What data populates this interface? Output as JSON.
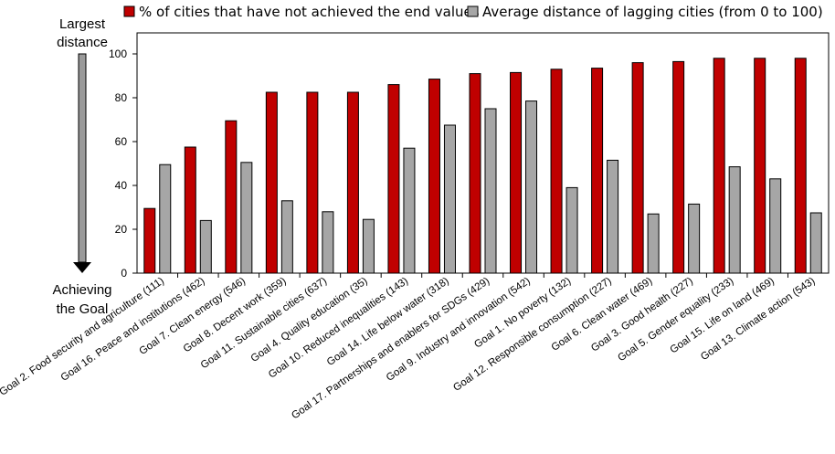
{
  "chart_data": {
    "type": "bar",
    "title": "",
    "xlabel": "",
    "ylabel": "",
    "ylim": [
      0,
      100
    ],
    "yticks": [
      0,
      20,
      40,
      60,
      80,
      100
    ],
    "grid": false,
    "legend_position": "top",
    "side_label_top": [
      "Largest",
      "distance"
    ],
    "side_label_bottom": [
      "Achieving",
      "the Goal"
    ],
    "categories": [
      "Goal 2. Food security and agriculture (111)",
      "Goal 16. Peace and institutions (462)",
      "Goal 7. Clean energy (546)",
      "Goal 8. Decent work (359)",
      "Goal 11. Sustainable cities (637)",
      "Goal 4. Quality education (35)",
      "Goal 10. Reduced inequalities (143)",
      "Goal 14. Life below water (318)",
      "Goal 17. Partnerships and enablers for SDGs (429)",
      "Goal 9. Industry and innovation (542)",
      "Goal 1. No poverty (132)",
      "Goal 12. Responsible consumption (227)",
      "Goal 6. Clean water (469)",
      "Goal 3. Good health (227)",
      "Goal 5. Gender equality (233)",
      "Goal 15. Life on land (469)",
      "Goal 13. Climate action (543)"
    ],
    "series": [
      {
        "name": "% of cities that have not achieved the end values",
        "color": "#c00000",
        "values": [
          29.5,
          57.5,
          69.5,
          82.5,
          82.5,
          82.5,
          86,
          88.5,
          91,
          91.5,
          93,
          93.5,
          96,
          96.5,
          98,
          98,
          98
        ]
      },
      {
        "name": "Average distance of lagging cities (from 0 to 100)",
        "color": "#a6a6a6",
        "values": [
          49.5,
          24,
          50.5,
          33,
          28,
          24.5,
          57,
          67.5,
          75,
          78.5,
          39,
          51.5,
          27,
          31.5,
          48.5,
          43,
          27.5
        ]
      }
    ]
  }
}
